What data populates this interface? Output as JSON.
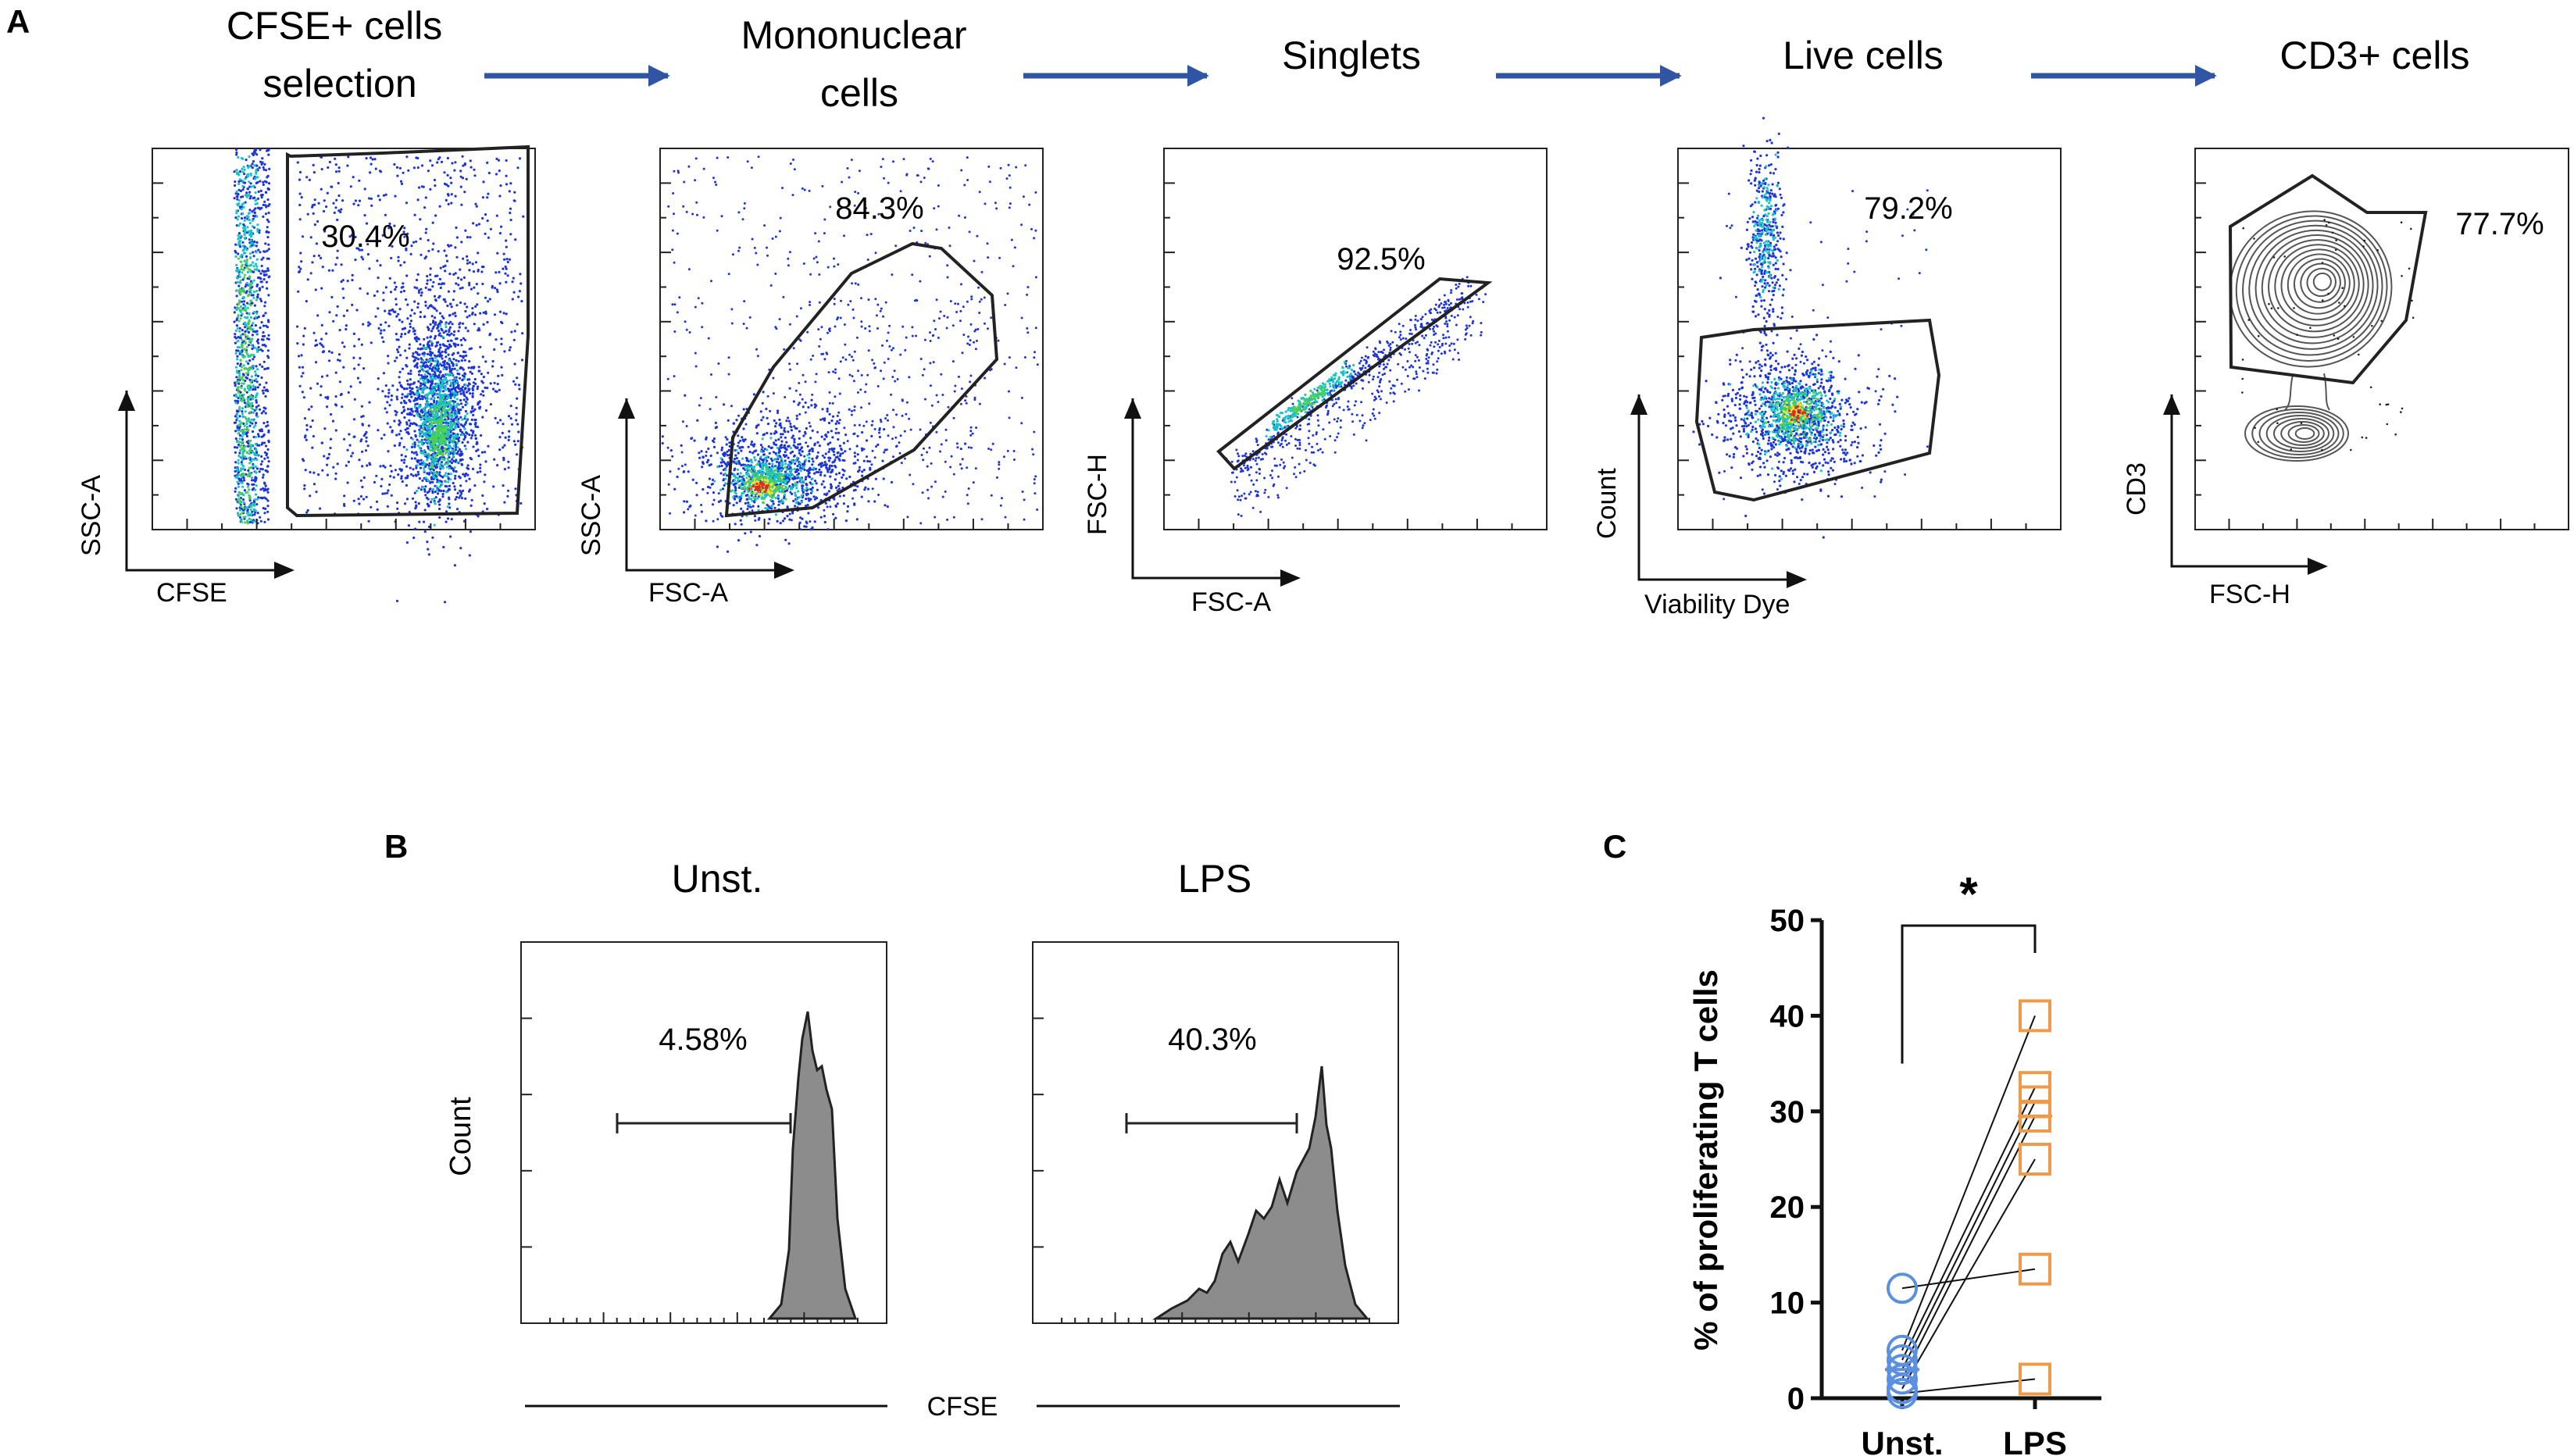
{
  "colors": {
    "arrow": "#2f55a4",
    "gate": "#222222",
    "dot_blue": "#1d34d6",
    "dot_cyan": "#19c3c8",
    "dot_green": "#4fd04f",
    "dot_yellow": "#f0e23a",
    "dot_red": "#e02a1a",
    "contour": "#555555",
    "histogram_fill": "#8c8c8c",
    "unst_marker": "#5b8fe0",
    "lps_marker": "#ee9a4a"
  },
  "panel_a": {
    "label": "A",
    "steps": [
      {
        "title_lines": [
          "CFSE+ cells",
          "selection"
        ],
        "percent": "30.4%",
        "x_label": "CFSE",
        "y_label": "SSC-A"
      },
      {
        "title_lines": [
          "Mononuclear",
          "cells"
        ],
        "percent": "84.3%",
        "x_label": "FSC-A",
        "y_label": "SSC-A"
      },
      {
        "title_lines": [
          "Singlets"
        ],
        "percent": "92.5%",
        "x_label": "FSC-A",
        "y_label": "FSC-H"
      },
      {
        "title_lines": [
          "Live cells"
        ],
        "percent": "79.2%",
        "x_label": "Viability Dye",
        "y_label": "Count"
      },
      {
        "title_lines": [
          "CD3+ cells"
        ],
        "percent": "77.7%",
        "x_label": "FSC-H",
        "y_label": "CD3"
      }
    ]
  },
  "panel_b": {
    "label": "B",
    "y_label": "Count",
    "x_label": "CFSE",
    "histograms": [
      {
        "title": "Unst.",
        "percent": "4.58%"
      },
      {
        "title": "LPS",
        "percent": "40.3%"
      }
    ]
  },
  "panel_c": {
    "label": "C",
    "significance": "*",
    "chart_data": {
      "type": "scatter",
      "title": "",
      "xlabel": "",
      "ylabel": "% of proliferating T cells",
      "categories": [
        "Unst.",
        "LPS"
      ],
      "ylim": [
        0,
        50
      ],
      "yticks": [
        0,
        10,
        20,
        30,
        40,
        50
      ],
      "paired": true,
      "series": [
        {
          "name": "Unst.",
          "marker": "circle",
          "values": [
            11.5,
            5.0,
            4.0,
            3.0,
            2.0,
            1.0,
            0.5
          ]
        },
        {
          "name": "LPS",
          "marker": "square",
          "values": [
            13.5,
            40.0,
            32.5,
            31.0,
            29.5,
            25.0,
            2.0
          ]
        }
      ],
      "medians": [
        3.0,
        29.5
      ]
    }
  }
}
